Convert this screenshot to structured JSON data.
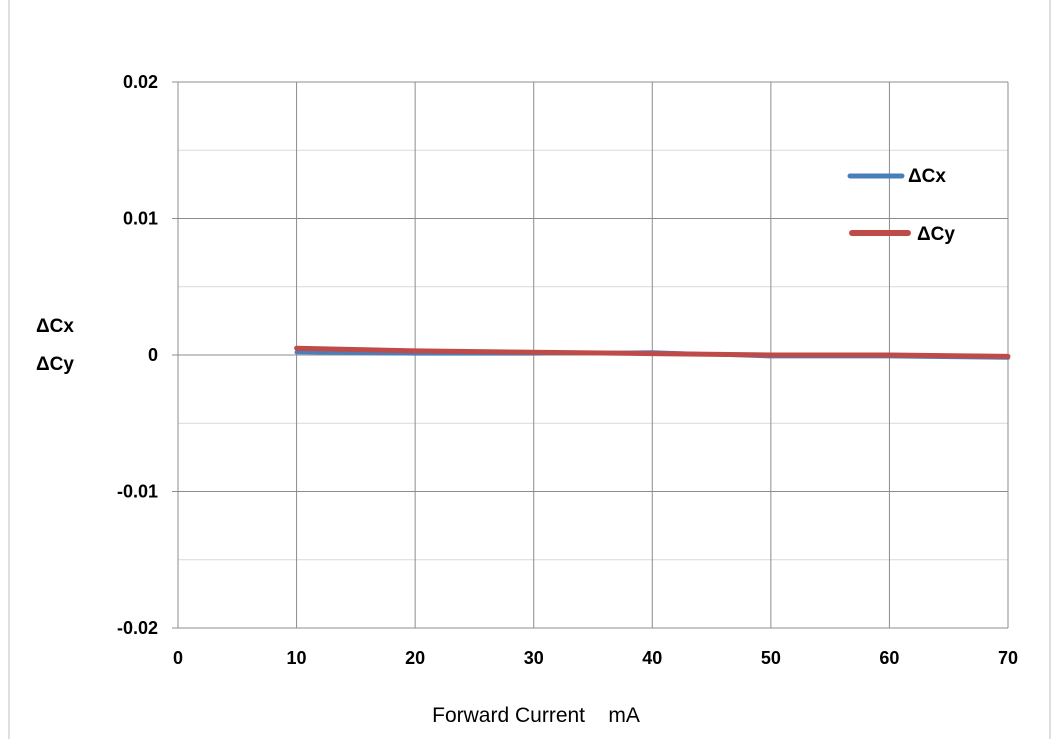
{
  "chart_data": {
    "type": "line",
    "xlabel": "Forward Current    mA",
    "ylabel_lines": [
      "ΔCx",
      "ΔCy"
    ],
    "xlim": [
      0,
      70
    ],
    "ylim": [
      -0.02,
      0.02
    ],
    "x_ticks": [
      0,
      10,
      20,
      30,
      40,
      50,
      60,
      70
    ],
    "y_ticks": [
      0.02,
      0.01,
      0,
      -0.01,
      -0.02
    ],
    "y_tick_labels": [
      "0.02",
      "0.01",
      "0",
      "-0.01",
      "-0.02"
    ],
    "y_minor_gridlines": true,
    "grid": true,
    "legend_position": "top-right",
    "x": [
      10,
      20,
      30,
      40,
      50,
      60,
      70
    ],
    "series": [
      {
        "name": "ΔCx",
        "color": "#4a7ebb",
        "values": [
          0.0002,
          0.0001,
          0.0001,
          0.0002,
          -0.0001,
          -0.0001,
          -0.0002
        ]
      },
      {
        "name": "ΔCy",
        "color": "#be4b48",
        "values": [
          0.0005,
          0.0003,
          0.0002,
          0.0001,
          0.0,
          0.0,
          -0.0001
        ]
      }
    ]
  }
}
